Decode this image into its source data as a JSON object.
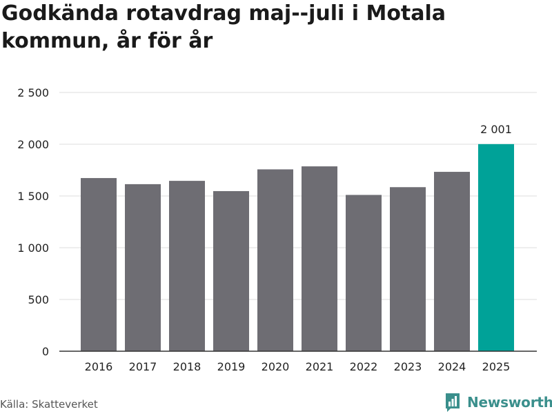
{
  "chart_data": {
    "type": "bar",
    "title": "Godkända rotavdrag maj--juli i Motala kommun, år för år",
    "categories": [
      "2016",
      "2017",
      "2018",
      "2019",
      "2020",
      "2021",
      "2022",
      "2023",
      "2024",
      "2025"
    ],
    "values": [
      1673,
      1614,
      1646,
      1547,
      1757,
      1786,
      1510,
      1585,
      1733,
      2001
    ],
    "highlight_index": 9,
    "highlight_label": "2 001",
    "ylim": [
      0,
      2500
    ],
    "yticks": [
      0,
      500,
      1000,
      1500,
      2000,
      2500
    ],
    "ytick_labels": [
      "0",
      "500",
      "1 000",
      "1 500",
      "2 000",
      "2 500"
    ],
    "xlabel": "",
    "ylabel": "",
    "grid": true,
    "colors": {
      "bar": "#6e6d73",
      "highlight": "#00a298",
      "grid": "#dddddd",
      "axis": "#333333"
    }
  },
  "footer": {
    "source": "Källa: Skatteverket",
    "brand": "Newsworthy",
    "brand_icon": "newsworthy-logo-icon",
    "brand_color": "#3a8f8c"
  }
}
